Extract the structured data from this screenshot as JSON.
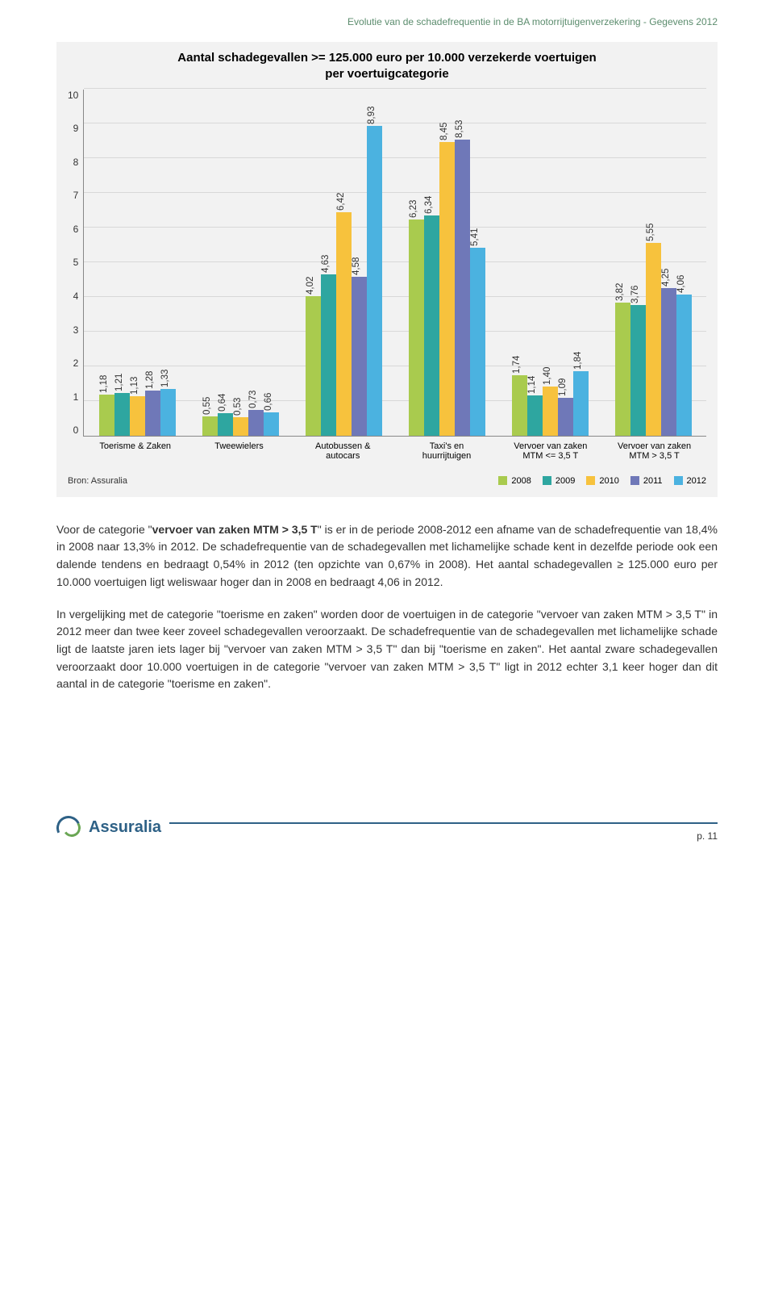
{
  "doc_header": "Evolutie van de schadefrequentie in de BA motorrijtuigenverzekering - Gegevens 2012",
  "chart": {
    "type": "bar",
    "title_line1": "Aantal schadegevallen >= 125.000 euro per 10.000 verzekerde voertuigen",
    "title_line2": "per voertuigcategorie",
    "ylim_max": 10,
    "ytick_step": 1,
    "background_color": "#f2f2f2",
    "grid_color": "#d8d8d8",
    "series": [
      {
        "label": "2008",
        "color": "#a9cb4e"
      },
      {
        "label": "2009",
        "color": "#2ea6a0"
      },
      {
        "label": "2010",
        "color": "#f7c23d"
      },
      {
        "label": "2011",
        "color": "#6f78b8"
      },
      {
        "label": "2012",
        "color": "#4bb2e0"
      }
    ],
    "categories": [
      {
        "label": "Toerisme & Zaken",
        "values": [
          1.18,
          1.21,
          1.13,
          1.28,
          1.33
        ],
        "value_labels": [
          "1,18",
          "1,21",
          "1,13",
          "1,28",
          "1,33"
        ]
      },
      {
        "label": "Tweewielers",
        "values": [
          0.55,
          0.64,
          0.53,
          0.73,
          0.66
        ],
        "value_labels": [
          "0,55",
          "0,64",
          "0,53",
          "0,73",
          "0,66"
        ]
      },
      {
        "label": "Autobussen & autocars",
        "values": [
          4.02,
          4.63,
          6.42,
          4.58,
          8.93
        ],
        "value_labels": [
          "4,02",
          "4,63",
          "6,42",
          "4,58",
          "8,93"
        ]
      },
      {
        "label": "Taxi's en huurrijtuigen",
        "values": [
          6.23,
          6.34,
          8.45,
          8.53,
          5.41
        ],
        "value_labels": [
          "6,23",
          "6,34",
          "8,45",
          "8,53",
          "5,41"
        ]
      },
      {
        "label": "Vervoer van zaken MTM <= 3,5 T",
        "values": [
          1.74,
          1.14,
          1.4,
          1.09,
          1.84
        ],
        "value_labels": [
          "1,74",
          "1,14",
          "1,40",
          "1,09",
          "1,84"
        ]
      },
      {
        "label": "Vervoer van zaken MTM > 3,5 T",
        "values": [
          3.82,
          3.76,
          5.55,
          4.25,
          4.06
        ],
        "value_labels": [
          "3,82",
          "3,76",
          "5,55",
          "4,25",
          "4,06"
        ]
      }
    ],
    "source_label": "Bron: Assuralia"
  },
  "paragraphs": {
    "p1_a": "Voor de categorie \"",
    "p1_bold": "vervoer van zaken MTM > 3,5 T",
    "p1_b": "\" is er in de periode 2008-2012 een afname van de schadefrequentie van 18,4% in 2008 naar 13,3% in 2012. De schadefrequentie van de schadegevallen met lichamelijke schade kent in dezelfde periode ook een dalende tendens en bedraagt 0,54% in 2012 (ten opzichte van 0,67% in 2008). Het aantal schadegevallen ≥ 125.000 euro per 10.000 voertuigen ligt weliswaar hoger dan in 2008 en bedraagt 4,06 in 2012.",
    "p2": "In vergelijking met de categorie \"toerisme en zaken\" worden door de voertuigen in de categorie \"vervoer van zaken MTM > 3,5 T\" in 2012 meer dan twee keer zoveel schadegevallen veroorzaakt. De schadefrequentie van de schadegevallen met lichamelijke schade ligt de laatste jaren iets lager bij \"vervoer van zaken MTM > 3,5 T\" dan bij \"toerisme en zaken\". Het aantal zware schadegevallen veroorzaakt door 10.000 voertuigen in de categorie \"vervoer van zaken MTM > 3,5 T\" ligt in 2012 echter 3,1 keer hoger dan dit aantal in de categorie \"toerisme en zaken\"."
  },
  "logo_text": "Assuralia",
  "page_number": "p. 11"
}
